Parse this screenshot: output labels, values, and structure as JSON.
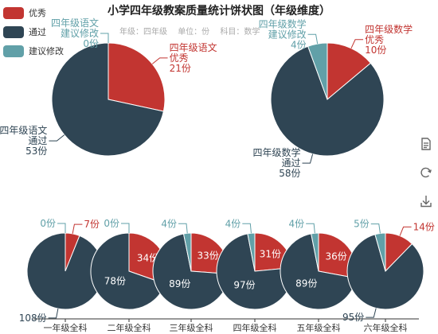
{
  "title": "小学四年级教案质量统计饼状图（年级维度）",
  "subtitle": {
    "grade": "年级：四年级",
    "unit": "单位：份",
    "subject": "科目：数学"
  },
  "legend": [
    {
      "label": "优秀",
      "color": "#c23531"
    },
    {
      "label": "通过",
      "color": "#2f4554"
    },
    {
      "label": "建议修改",
      "color": "#61a0a8"
    }
  ],
  "toolbox": [
    {
      "name": "data-view-icon",
      "label": "数据视图"
    },
    {
      "name": "restore-icon",
      "label": "还原"
    },
    {
      "name": "save-image-icon",
      "label": "保存为图片"
    }
  ],
  "chart_data": [
    {
      "type": "pie",
      "categories": [
        "优秀",
        "通过",
        "建议修改"
      ],
      "values": [
        21,
        53,
        0
      ],
      "labels": [
        [
          "四年级语文",
          "优秀",
          "21份"
        ],
        [
          "四年级语文",
          "通过",
          "53份"
        ],
        [
          "四年级语文",
          "建议修改",
          "0份"
        ]
      ]
    },
    {
      "type": "pie",
      "categories": [
        "优秀",
        "通过",
        "建议修改"
      ],
      "values": [
        10,
        58,
        4
      ],
      "labels": [
        [
          "四年级数学",
          "优秀",
          "10份"
        ],
        [
          "四年级数学",
          "通过",
          "58份"
        ],
        [
          "四年级数学",
          "建议修改",
          "4份"
        ]
      ]
    },
    {
      "type": "pie",
      "categories": [
        "优秀",
        "通过",
        "建议修改"
      ],
      "axis_label": "一年级全科",
      "values": [
        7,
        108,
        0
      ],
      "labels": [
        "7份",
        "108份",
        "0份"
      ]
    },
    {
      "type": "pie",
      "categories": [
        "优秀",
        "通过",
        "建议修改"
      ],
      "axis_label": "二年级全科",
      "values": [
        34,
        78,
        0
      ],
      "labels": [
        "34份",
        "78份",
        "0份"
      ]
    },
    {
      "type": "pie",
      "categories": [
        "优秀",
        "通过",
        "建议修改"
      ],
      "axis_label": "三年级全科",
      "values": [
        33,
        89,
        4
      ],
      "labels": [
        "33份",
        "89份",
        "4份"
      ]
    },
    {
      "type": "pie",
      "categories": [
        "优秀",
        "通过",
        "建议修改"
      ],
      "axis_label": "四年级全科",
      "values": [
        31,
        97,
        4
      ],
      "labels": [
        "31份",
        "97份",
        "4份"
      ]
    },
    {
      "type": "pie",
      "categories": [
        "优秀",
        "通过",
        "建议修改"
      ],
      "axis_label": "五年级全科",
      "values": [
        36,
        89,
        4
      ],
      "labels": [
        "36份",
        "89份",
        "4份"
      ]
    },
    {
      "type": "pie",
      "categories": [
        "优秀",
        "通过",
        "建议修改"
      ],
      "axis_label": "六年级全科",
      "values": [
        14,
        95,
        5
      ],
      "labels": [
        "14份",
        "95份",
        "5份"
      ]
    }
  ]
}
